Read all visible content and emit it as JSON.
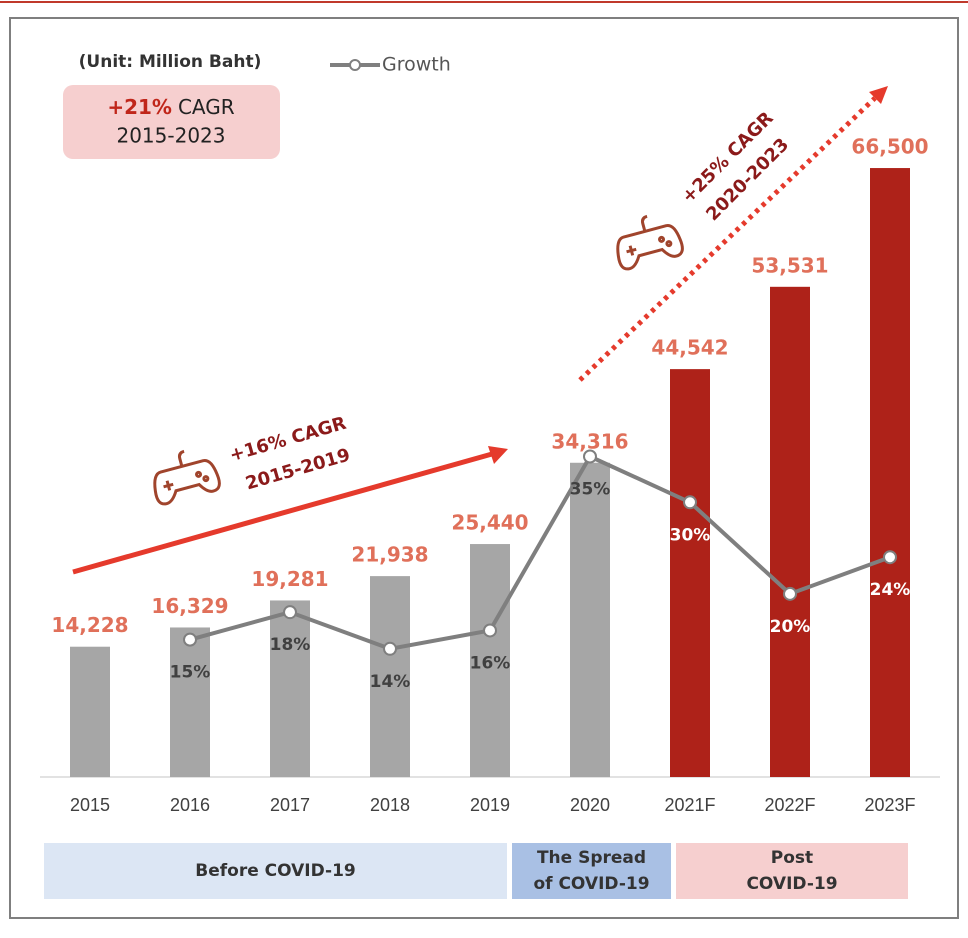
{
  "chart_data": {
    "type": "bar",
    "unit_note": "(Unit: Million Baht)",
    "cagr_box": {
      "rate": "+21%",
      "label": "CAGR",
      "period": "2015-2023"
    },
    "annotations": [
      {
        "text": "+16% CAGR",
        "period": "2015-2019"
      },
      {
        "text": "+25% CAGR",
        "period": "2020-2023"
      }
    ],
    "categories": [
      "2015",
      "2016",
      "2017",
      "2018",
      "2019",
      "2020",
      "2021F",
      "2022F",
      "2023F"
    ],
    "values": [
      14228,
      16329,
      19281,
      21938,
      25440,
      34316,
      44542,
      53531,
      66500
    ],
    "value_labels": [
      "14,228",
      "16,329",
      "19,281",
      "21,938",
      "25,440",
      "34,316",
      "44,542",
      "53,531",
      "66,500"
    ],
    "colors": [
      "#a6a6a6",
      "#a6a6a6",
      "#a6a6a6",
      "#a6a6a6",
      "#a6a6a6",
      "#a6a6a6",
      "#ae2219",
      "#ae2219",
      "#ae2219"
    ],
    "ylim": [
      0,
      70000
    ],
    "y2lim": [
      0,
      70
    ],
    "series": [
      {
        "name": "Growth",
        "type": "line",
        "color": "#7f7f7f",
        "axis": "y2",
        "values": [
          null,
          15,
          18,
          14,
          16,
          35,
          30,
          20,
          24
        ],
        "value_labels": [
          null,
          "15%",
          "18%",
          "14%",
          "16%",
          "35%",
          "30%",
          "20%",
          "24%"
        ]
      }
    ],
    "periods": [
      {
        "lines": [
          "Before COVID-19"
        ],
        "color": "#dce6f4"
      },
      {
        "lines": [
          "The Spread",
          "of COVID-19"
        ],
        "color": "#a9c0e4"
      },
      {
        "lines": [
          "Post",
          "COVID-19"
        ],
        "color": "#f6cfcf"
      }
    ],
    "grid": false
  }
}
